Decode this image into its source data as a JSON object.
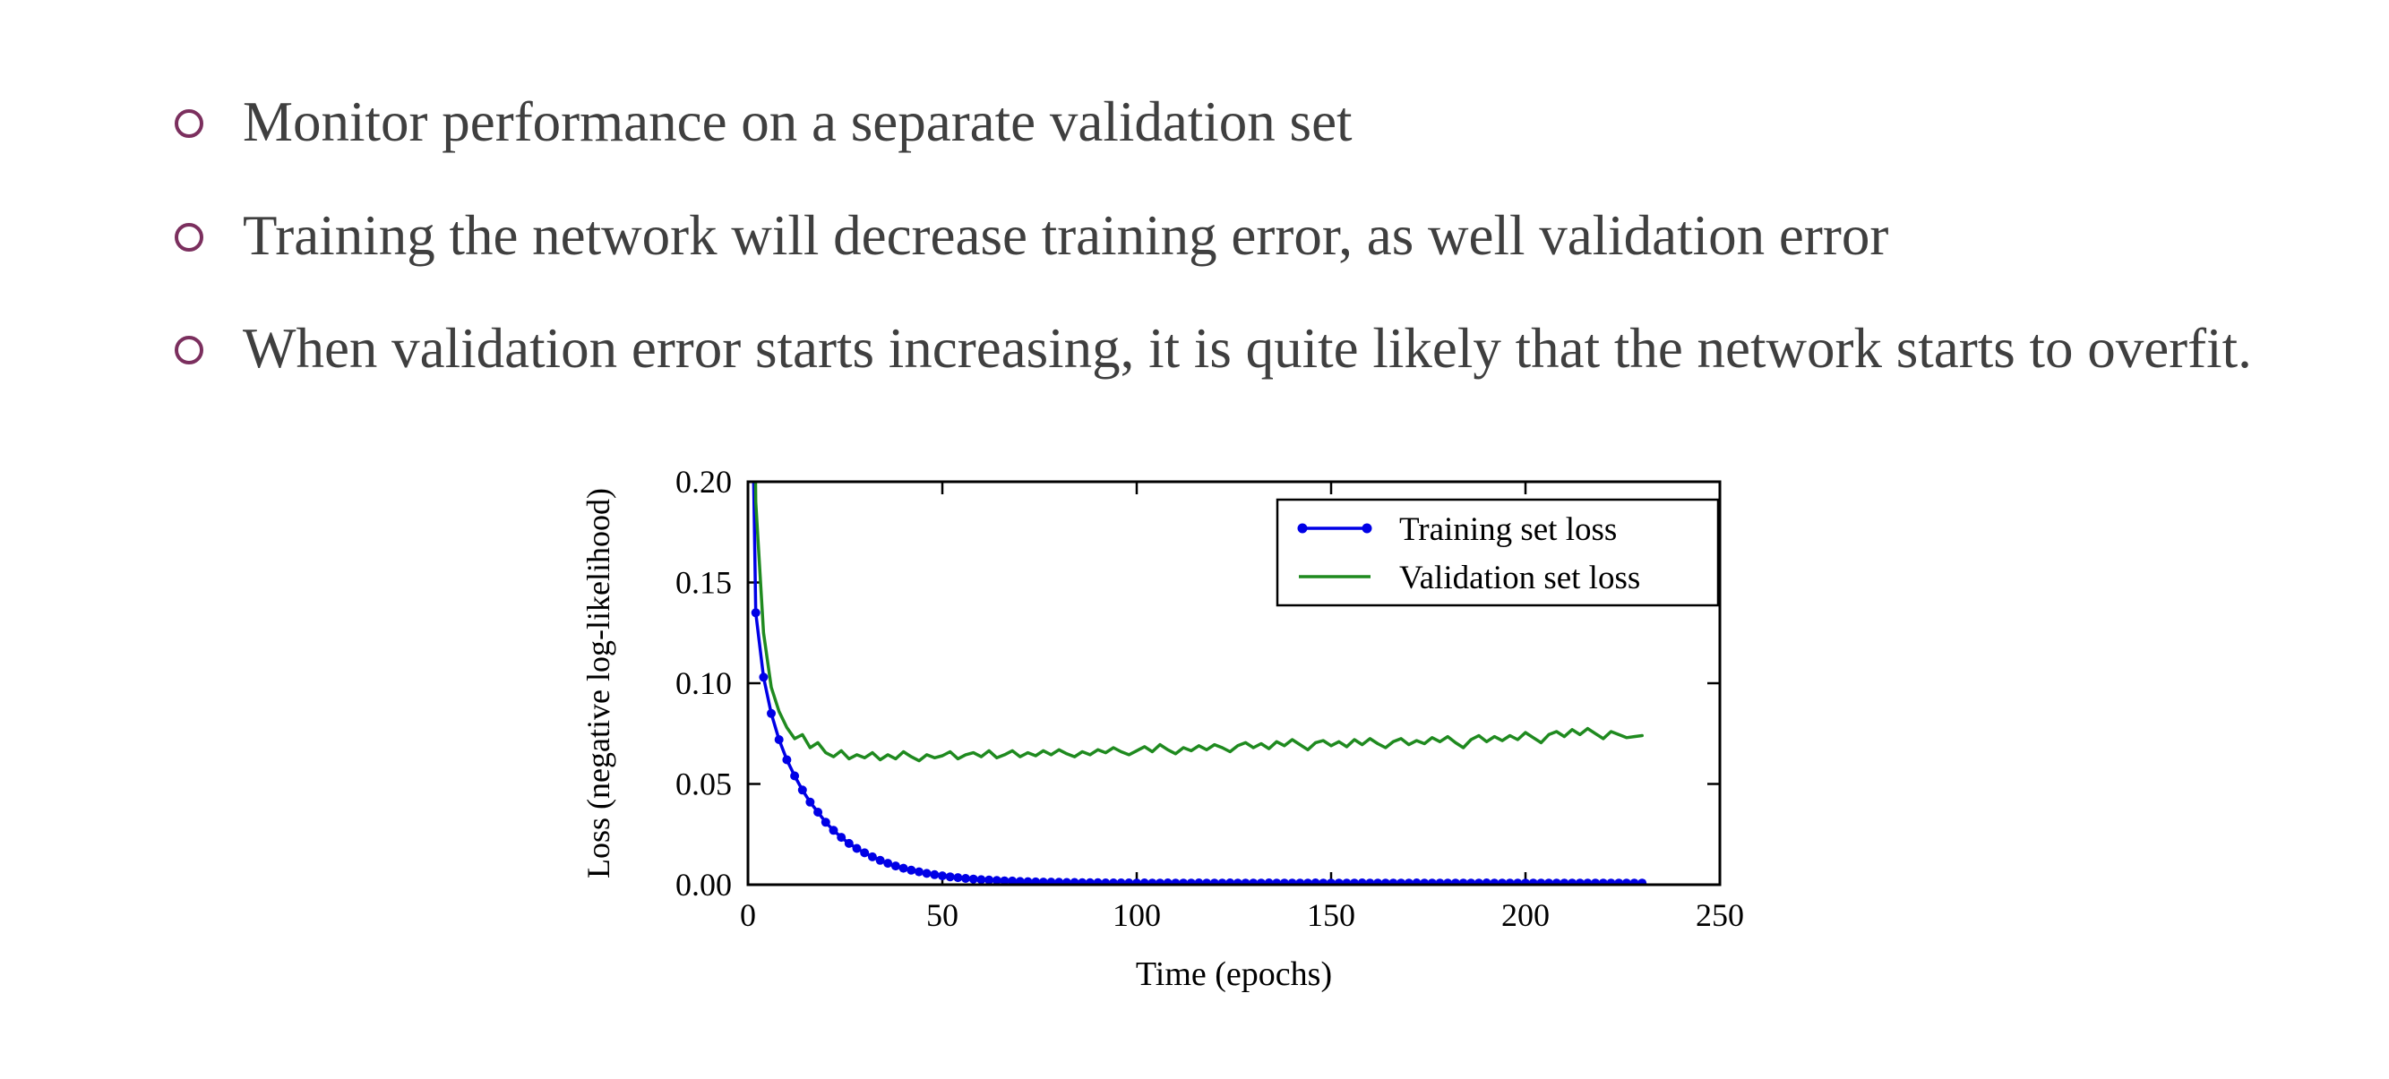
{
  "slide": {
    "bullet_color": "#7b2f5e",
    "text_color": "#3f3f3f",
    "bullets": [
      {
        "text": "Monitor performance on a separate validation set"
      },
      {
        "text": "Training the network will decrease training error, as well validation error"
      },
      {
        "text": "When validation error starts increasing, it is quite likely that the network starts to overfit."
      }
    ]
  },
  "chart_data": {
    "type": "line",
    "title": "",
    "xlabel": "Time (epochs)",
    "ylabel": "Loss (negative log-likelihood)",
    "xlim": [
      0,
      250
    ],
    "ylim": [
      0,
      0.2
    ],
    "x_ticks": [
      0,
      50,
      100,
      150,
      200,
      250
    ],
    "y_ticks": [
      0,
      0.05,
      0.1,
      0.15,
      0.2
    ],
    "grid": false,
    "legend_position": "upper right",
    "frame_color": "#000000",
    "x_sampling": {
      "start_epoch": 0,
      "step_epochs": 2,
      "num_points": 116
    },
    "series": [
      {
        "name": "Training set loss",
        "color": "#0000e6",
        "markers": true,
        "values": [
          0.38,
          0.135,
          0.103,
          0.085,
          0.072,
          0.062,
          0.054,
          0.047,
          0.041,
          0.036,
          0.031,
          0.027,
          0.0235,
          0.0205,
          0.018,
          0.0158,
          0.0138,
          0.0121,
          0.0106,
          0.0093,
          0.0082,
          0.0072,
          0.0064,
          0.0056,
          0.005,
          0.0044,
          0.0039,
          0.0035,
          0.0031,
          0.0028,
          0.0025,
          0.0023,
          0.0021,
          0.0019,
          0.0018,
          0.0016,
          0.0015,
          0.0014,
          0.0013,
          0.0013,
          0.0012,
          0.0011,
          0.0011,
          0.001,
          0.001,
          0.001,
          0.0009,
          0.0009,
          0.0009,
          0.0009,
          0.0008,
          0.0009,
          0.0008,
          0.0008,
          0.0009,
          0.0008,
          0.0008,
          0.0008,
          0.0009,
          0.0008,
          0.0008,
          0.0008,
          0.0009,
          0.0008,
          0.0008,
          0.0008,
          0.0008,
          0.0009,
          0.0008,
          0.0008,
          0.0008,
          0.0008,
          0.0008,
          0.0009,
          0.0008,
          0.0008,
          0.0008,
          0.0008,
          0.0008,
          0.0009,
          0.0008,
          0.0008,
          0.0008,
          0.0008,
          0.0008,
          0.0008,
          0.0009,
          0.0008,
          0.0008,
          0.0008,
          0.0008,
          0.0008,
          0.0008,
          0.0008,
          0.0008,
          0.0009,
          0.0008,
          0.0008,
          0.0008,
          0.0008,
          0.0008,
          0.0008,
          0.0008,
          0.0008,
          0.0008,
          0.0008,
          0.0008,
          0.0008,
          0.0008,
          0.0008,
          0.0008,
          0.0008,
          0.0008,
          0.0008,
          0.0008,
          0.0008
        ]
      },
      {
        "name": "Validation set loss",
        "color": "#1f8a1f",
        "markers": false,
        "values": [
          0.55,
          0.19,
          0.125,
          0.098,
          0.086,
          0.078,
          0.0725,
          0.0745,
          0.068,
          0.0705,
          0.0655,
          0.0635,
          0.0665,
          0.0625,
          0.0645,
          0.063,
          0.0655,
          0.062,
          0.0645,
          0.0625,
          0.066,
          0.0635,
          0.0615,
          0.0645,
          0.063,
          0.064,
          0.066,
          0.0625,
          0.0645,
          0.0655,
          0.0635,
          0.0665,
          0.063,
          0.0645,
          0.0665,
          0.0635,
          0.0655,
          0.064,
          0.0665,
          0.0645,
          0.067,
          0.065,
          0.0635,
          0.066,
          0.0645,
          0.067,
          0.0655,
          0.068,
          0.066,
          0.0645,
          0.0665,
          0.0685,
          0.066,
          0.0695,
          0.067,
          0.065,
          0.068,
          0.0665,
          0.069,
          0.067,
          0.0695,
          0.068,
          0.066,
          0.069,
          0.0705,
          0.068,
          0.07,
          0.0675,
          0.071,
          0.069,
          0.072,
          0.0695,
          0.067,
          0.0705,
          0.0715,
          0.069,
          0.071,
          0.0685,
          0.072,
          0.0695,
          0.0725,
          0.07,
          0.068,
          0.071,
          0.0725,
          0.0695,
          0.0715,
          0.07,
          0.073,
          0.071,
          0.0735,
          0.0705,
          0.068,
          0.072,
          0.074,
          0.071,
          0.0735,
          0.0715,
          0.074,
          0.072,
          0.0755,
          0.073,
          0.0705,
          0.0745,
          0.076,
          0.0735,
          0.077,
          0.0745,
          0.0775,
          0.075,
          0.0725,
          0.076,
          0.0745,
          0.073,
          0.0735,
          0.074
        ]
      }
    ]
  }
}
